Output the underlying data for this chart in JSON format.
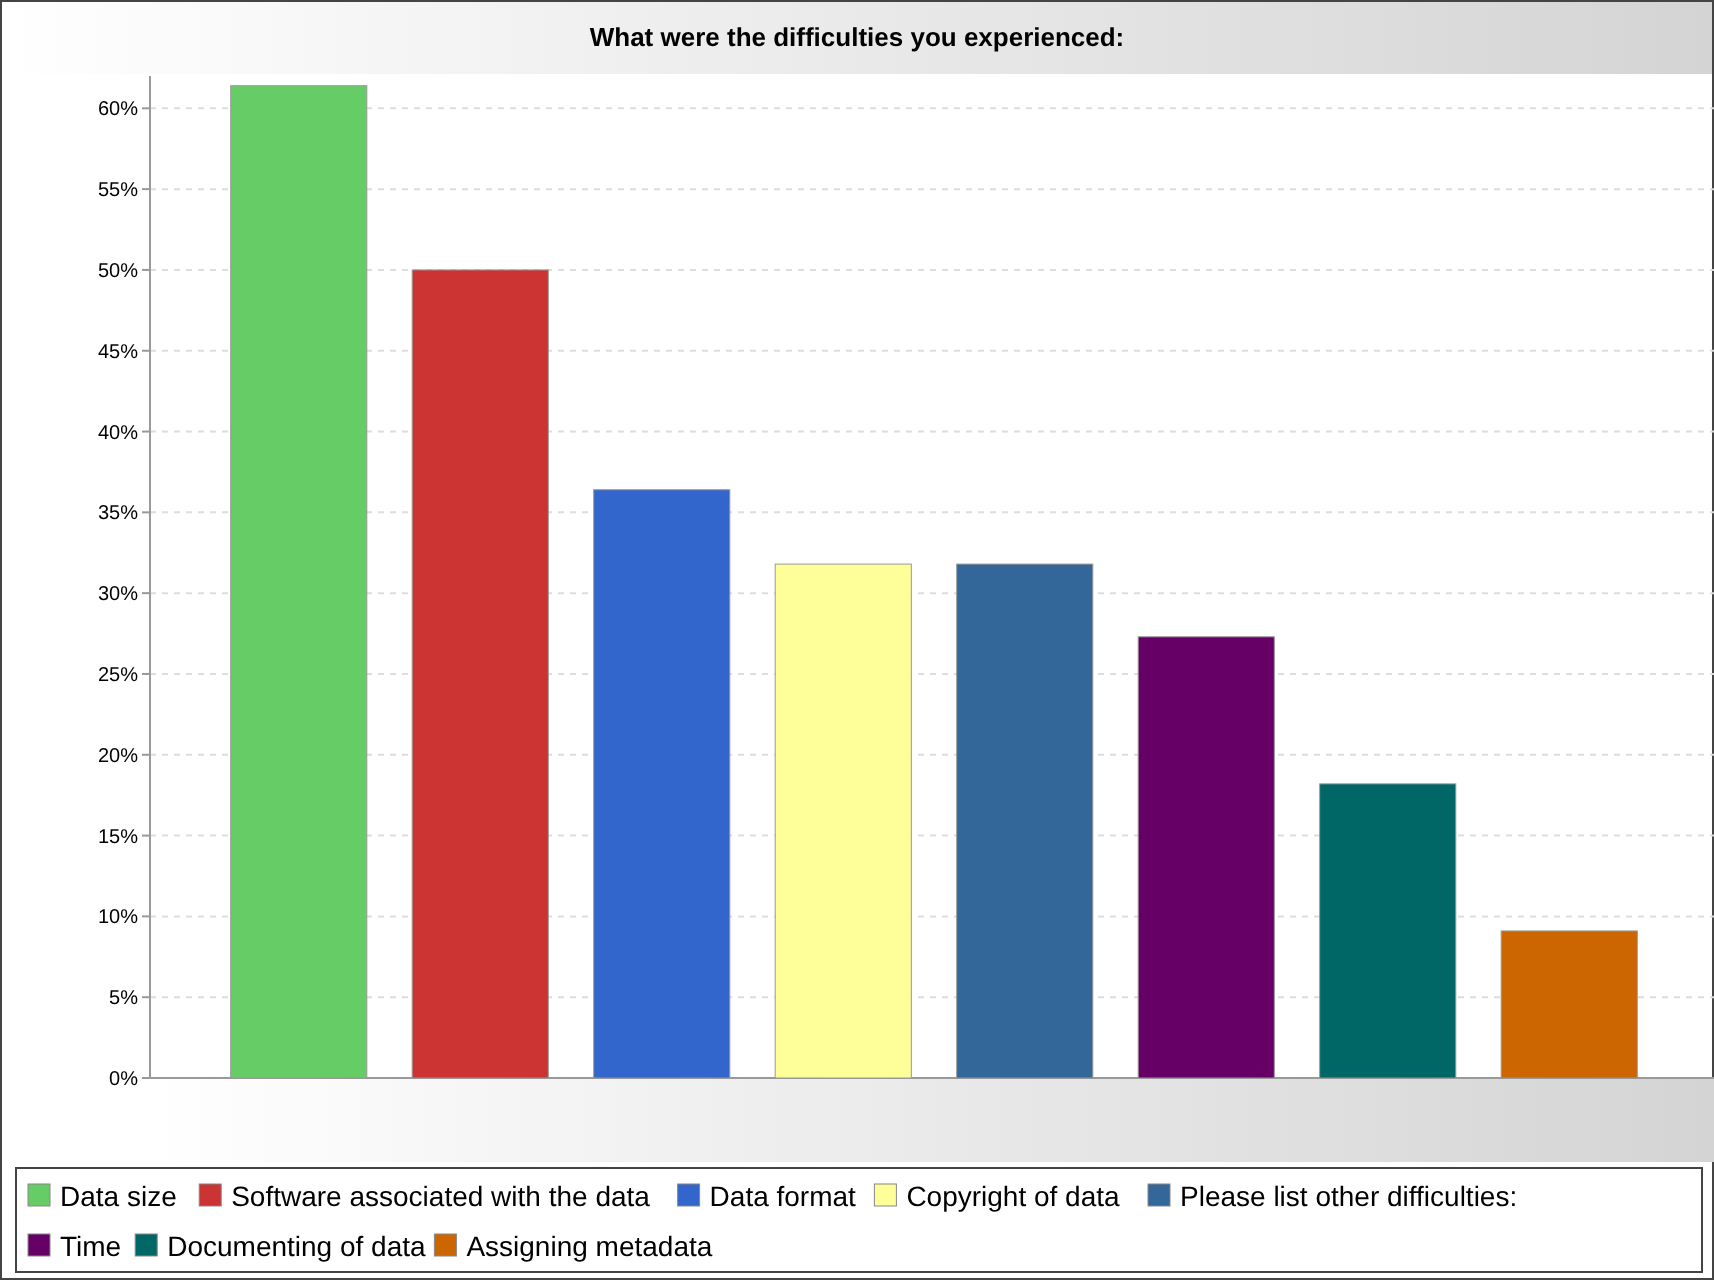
{
  "chart_data": {
    "type": "bar",
    "title": "What were the difficulties you experienced:",
    "categories": [
      null,
      null,
      null,
      null,
      null,
      null,
      null,
      null
    ],
    "series": [
      {
        "name": "Data size",
        "color": "#66cc66",
        "values": [
          61.4,
          null,
          null,
          null,
          null,
          null,
          null,
          null
        ]
      },
      {
        "name": "Software associated with the data",
        "color": "#cc3333",
        "values": [
          null,
          50,
          null,
          null,
          null,
          null,
          null,
          null
        ]
      },
      {
        "name": "Data format",
        "color": "#3366cc",
        "values": [
          null,
          null,
          36.4,
          null,
          null,
          null,
          null,
          null
        ]
      },
      {
        "name": "Copyright of data",
        "color": "#ffff99",
        "values": [
          null,
          null,
          null,
          31.8,
          null,
          null,
          null,
          null
        ]
      },
      {
        "name": "Please list other difficulties:",
        "color": "#336699",
        "values": [
          null,
          null,
          null,
          null,
          31.8,
          null,
          null,
          null
        ]
      },
      {
        "name": "Time",
        "color": "#660066",
        "values": [
          null,
          null,
          null,
          null,
          null,
          27.3,
          null,
          null
        ]
      },
      {
        "name": "Documenting of data",
        "color": "#006666",
        "values": [
          null,
          null,
          null,
          null,
          null,
          null,
          18.2,
          null
        ]
      },
      {
        "name": "Assigning metadata",
        "color": "#cc6600",
        "values": [
          null,
          null,
          null,
          null,
          null,
          null,
          null,
          9.1
        ]
      }
    ],
    "ylim": [
      0,
      62
    ],
    "yticks": [
      {
        "value": 0,
        "label": "0%"
      },
      {
        "value": 5,
        "label": "5%"
      },
      {
        "value": 10,
        "label": "10%"
      },
      {
        "value": 15,
        "label": "15%"
      },
      {
        "value": 20,
        "label": "20%"
      },
      {
        "value": 25,
        "label": "25%"
      },
      {
        "value": 30,
        "label": "30%"
      },
      {
        "value": 35,
        "label": "35%"
      },
      {
        "value": 40,
        "label": "40%"
      },
      {
        "value": 45,
        "label": "45%"
      },
      {
        "value": 50,
        "label": "50%"
      },
      {
        "value": 55,
        "label": "55%"
      },
      {
        "value": 60,
        "label": "60%"
      }
    ],
    "grid": "y",
    "legend": "bottom",
    "tick_labels": "y"
  }
}
